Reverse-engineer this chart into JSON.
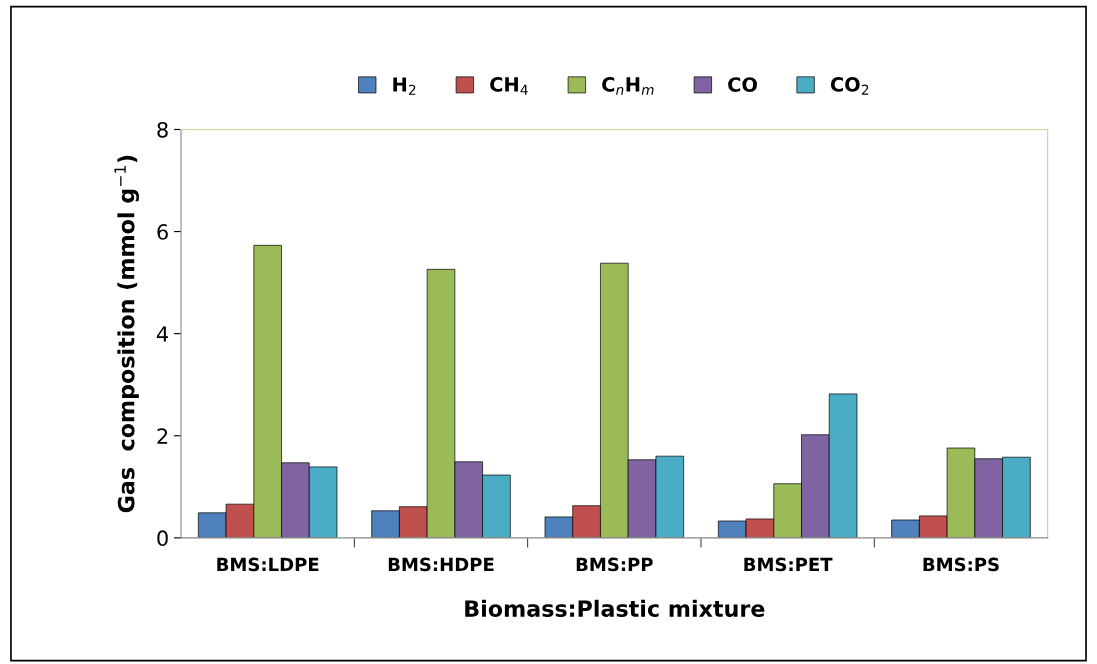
{
  "chart_data": {
    "type": "bar",
    "xlabel": "Biomass:Plastic mixture",
    "ylabel": "Gas  composition (mmol g$^{−1}$)",
    "categories": [
      "BMS:LDPE",
      "BMS:HDPE",
      "BMS:PP",
      "BMS:PET",
      "BMS:PS"
    ],
    "series": [
      {
        "name": "H$_{2}$",
        "color": "#4f81bd",
        "values": [
          0.49,
          0.53,
          0.41,
          0.33,
          0.35
        ]
      },
      {
        "name": "CH$_{4}$",
        "color": "#c0504d",
        "values": [
          0.66,
          0.61,
          0.63,
          0.37,
          0.43
        ]
      },
      {
        "name": "C$_{n}$H$_{m}$",
        "color": "#9bbb59",
        "values": [
          5.73,
          5.26,
          5.38,
          1.06,
          1.76
        ]
      },
      {
        "name": "CO",
        "color": "#8064a2",
        "values": [
          1.47,
          1.49,
          1.53,
          2.02,
          1.55
        ]
      },
      {
        "name": "CO$_{2}$",
        "color": "#4bacc6",
        "values": [
          1.39,
          1.23,
          1.6,
          2.82,
          1.58
        ]
      }
    ],
    "ylim": [
      0,
      8
    ],
    "yticks": [
      0,
      2,
      4,
      6,
      8
    ],
    "grid": false,
    "legend": "top"
  }
}
